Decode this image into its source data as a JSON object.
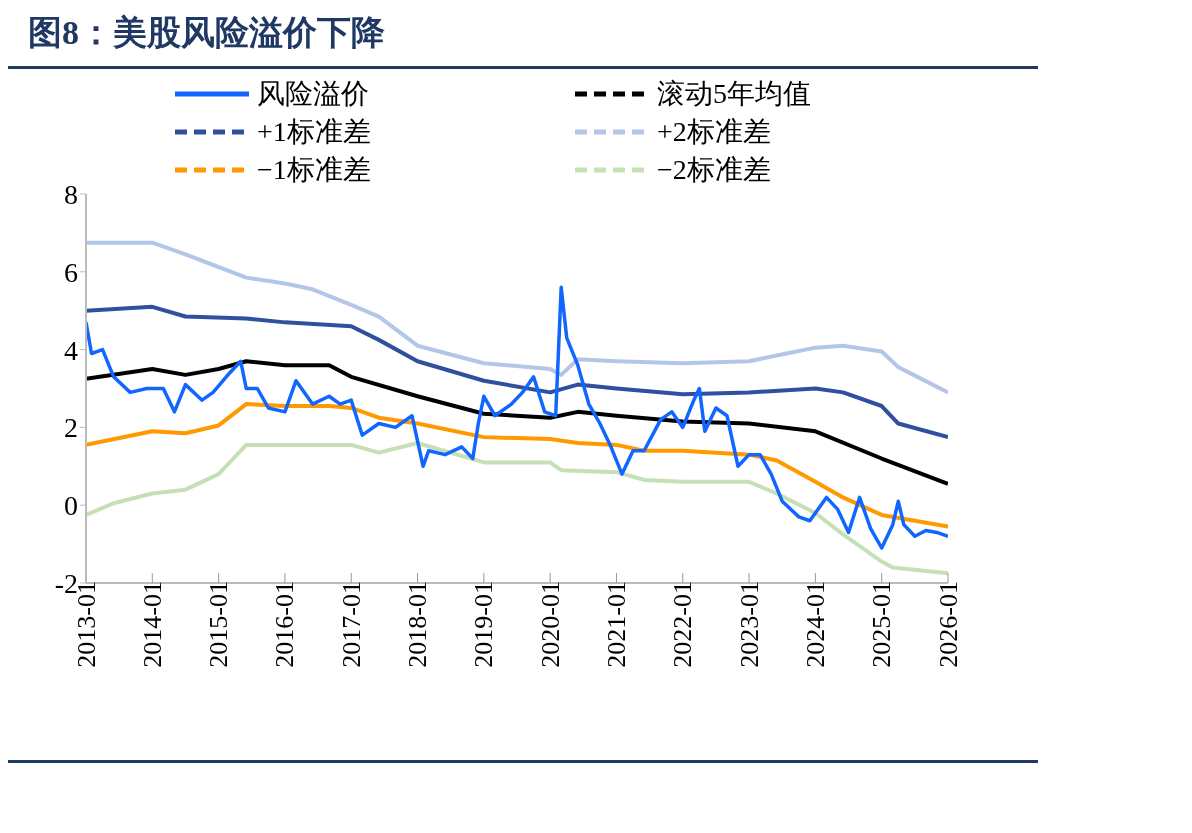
{
  "chart_data": {
    "type": "line",
    "title": "图8：美股风险溢价下降",
    "xlim": [
      "2013-01",
      "2026-01"
    ],
    "xticks": [
      "2013-01",
      "2014-01",
      "2015-01",
      "2016-01",
      "2017-01",
      "2018-01",
      "2019-01",
      "2020-01",
      "2021-01",
      "2022-01",
      "2023-01",
      "2024-01",
      "2025-01",
      "2026-01"
    ],
    "ylim": [
      -2,
      8
    ],
    "yticks": [
      -2,
      0,
      2,
      4,
      6,
      8
    ],
    "grid": false,
    "legend": "top",
    "line_style": "solid",
    "marker": "none",
    "series": [
      {
        "name": "风险溢价",
        "color": "#1166ff",
        "x": [
          "2013-01",
          "2013-02",
          "2013-04",
          "2013-06",
          "2013-09",
          "2013-12",
          "2014-03",
          "2014-05",
          "2014-07",
          "2014-10",
          "2014-12",
          "2015-03",
          "2015-05",
          "2015-06",
          "2015-08",
          "2015-10",
          "2016-01",
          "2016-03",
          "2016-06",
          "2016-09",
          "2016-11",
          "2017-01",
          "2017-03",
          "2017-06",
          "2017-09",
          "2017-12",
          "2018-02",
          "2018-03",
          "2018-06",
          "2018-09",
          "2018-11",
          "2018-12",
          "2019-01",
          "2019-03",
          "2019-06",
          "2019-08",
          "2019-10",
          "2019-12",
          "2020-02",
          "2020-03",
          "2020-04",
          "2020-06",
          "2020-08",
          "2020-10",
          "2020-12",
          "2021-02",
          "2021-04",
          "2021-06",
          "2021-09",
          "2021-11",
          "2022-01",
          "2022-03",
          "2022-04",
          "2022-05",
          "2022-07",
          "2022-09",
          "2022-11",
          "2023-01",
          "2023-03",
          "2023-05",
          "2023-07",
          "2023-10",
          "2023-12",
          "2024-03",
          "2024-05",
          "2024-07",
          "2024-09",
          "2024-11",
          "2025-01",
          "2025-03",
          "2025-04",
          "2025-05",
          "2025-07",
          "2025-09",
          "2025-11",
          "2026-01"
        ],
        "values": [
          4.7,
          3.9,
          4.0,
          3.3,
          2.9,
          3.0,
          3.0,
          2.4,
          3.1,
          2.7,
          2.9,
          3.4,
          3.7,
          3.0,
          3.0,
          2.5,
          2.4,
          3.2,
          2.6,
          2.8,
          2.6,
          2.7,
          1.8,
          2.1,
          2.0,
          2.3,
          1.0,
          1.4,
          1.3,
          1.5,
          1.2,
          2.1,
          2.8,
          2.3,
          2.6,
          2.9,
          3.3,
          2.4,
          2.3,
          5.6,
          4.3,
          3.6,
          2.6,
          2.1,
          1.5,
          0.8,
          1.4,
          1.4,
          2.2,
          2.4,
          2.0,
          2.7,
          3.0,
          1.9,
          2.5,
          2.3,
          1.0,
          1.3,
          1.3,
          0.8,
          0.1,
          -0.3,
          -0.4,
          0.2,
          -0.1,
          -0.7,
          0.2,
          -0.6,
          -1.1,
          -0.5,
          0.1,
          -0.5,
          -0.8,
          -0.65,
          -0.7,
          -0.8
        ]
      },
      {
        "name": "滚动5年均值",
        "color": "#000000",
        "x": [
          "2013-01",
          "2014-01",
          "2014-07",
          "2015-01",
          "2015-06",
          "2016-01",
          "2016-09",
          "2017-01",
          "2018-01",
          "2019-01",
          "2020-01",
          "2020-06",
          "2021-01",
          "2022-01",
          "2023-01",
          "2024-01",
          "2025-01",
          "2026-01"
        ],
        "values": [
          3.25,
          3.5,
          3.35,
          3.5,
          3.7,
          3.6,
          3.6,
          3.3,
          2.8,
          2.35,
          2.25,
          2.4,
          2.3,
          2.15,
          2.1,
          1.9,
          1.2,
          0.55
        ]
      },
      {
        "name": "+1标准差",
        "color": "#2f4f9f",
        "x": [
          "2013-01",
          "2014-01",
          "2014-07",
          "2015-06",
          "2016-01",
          "2017-01",
          "2017-06",
          "2018-01",
          "2019-01",
          "2020-01",
          "2020-06",
          "2021-01",
          "2022-01",
          "2023-01",
          "2024-01",
          "2024-06",
          "2025-01",
          "2025-04",
          "2026-01"
        ],
        "values": [
          5.0,
          5.1,
          4.85,
          4.8,
          4.7,
          4.6,
          4.25,
          3.7,
          3.2,
          2.9,
          3.1,
          3.0,
          2.85,
          2.9,
          3.0,
          2.9,
          2.55,
          2.1,
          1.75
        ]
      },
      {
        "name": "+2标准差",
        "color": "#b4c6e7",
        "x": [
          "2013-01",
          "2014-01",
          "2014-07",
          "2015-06",
          "2016-01",
          "2016-06",
          "2017-01",
          "2017-06",
          "2018-01",
          "2019-01",
          "2020-01",
          "2020-03",
          "2020-06",
          "2021-01",
          "2022-01",
          "2023-01",
          "2023-06",
          "2024-01",
          "2024-06",
          "2025-01",
          "2025-04",
          "2026-01"
        ],
        "values": [
          6.75,
          6.75,
          6.45,
          5.85,
          5.7,
          5.55,
          5.15,
          4.85,
          4.1,
          3.65,
          3.5,
          3.35,
          3.75,
          3.7,
          3.65,
          3.7,
          3.85,
          4.05,
          4.1,
          3.95,
          3.55,
          2.9
        ]
      },
      {
        "name": "−1标准差",
        "color": "#ff9900",
        "x": [
          "2013-01",
          "2014-01",
          "2014-07",
          "2015-01",
          "2015-06",
          "2016-01",
          "2016-09",
          "2017-01",
          "2017-06",
          "2018-01",
          "2019-01",
          "2020-01",
          "2020-06",
          "2021-01",
          "2021-06",
          "2022-01",
          "2023-01",
          "2023-06",
          "2024-01",
          "2024-06",
          "2025-01",
          "2026-01"
        ],
        "values": [
          1.55,
          1.9,
          1.85,
          2.05,
          2.6,
          2.55,
          2.55,
          2.5,
          2.25,
          2.1,
          1.75,
          1.7,
          1.6,
          1.55,
          1.4,
          1.4,
          1.3,
          1.15,
          0.6,
          0.2,
          -0.25,
          -0.55
        ]
      },
      {
        "name": "−2标准差",
        "color": "#c5e0b4",
        "x": [
          "2013-01",
          "2013-06",
          "2014-01",
          "2014-07",
          "2015-01",
          "2015-06",
          "2016-01",
          "2017-01",
          "2017-06",
          "2018-01",
          "2019-01",
          "2020-01",
          "2020-03",
          "2021-01",
          "2021-06",
          "2022-01",
          "2023-01",
          "2023-06",
          "2024-01",
          "2024-06",
          "2025-01",
          "2025-03",
          "2026-01"
        ],
        "values": [
          -0.25,
          0.05,
          0.3,
          0.4,
          0.8,
          1.55,
          1.55,
          1.55,
          1.35,
          1.6,
          1.1,
          1.1,
          0.9,
          0.85,
          0.65,
          0.6,
          0.6,
          0.3,
          -0.2,
          -0.75,
          -1.45,
          -1.6,
          -1.75
        ]
      }
    ]
  }
}
